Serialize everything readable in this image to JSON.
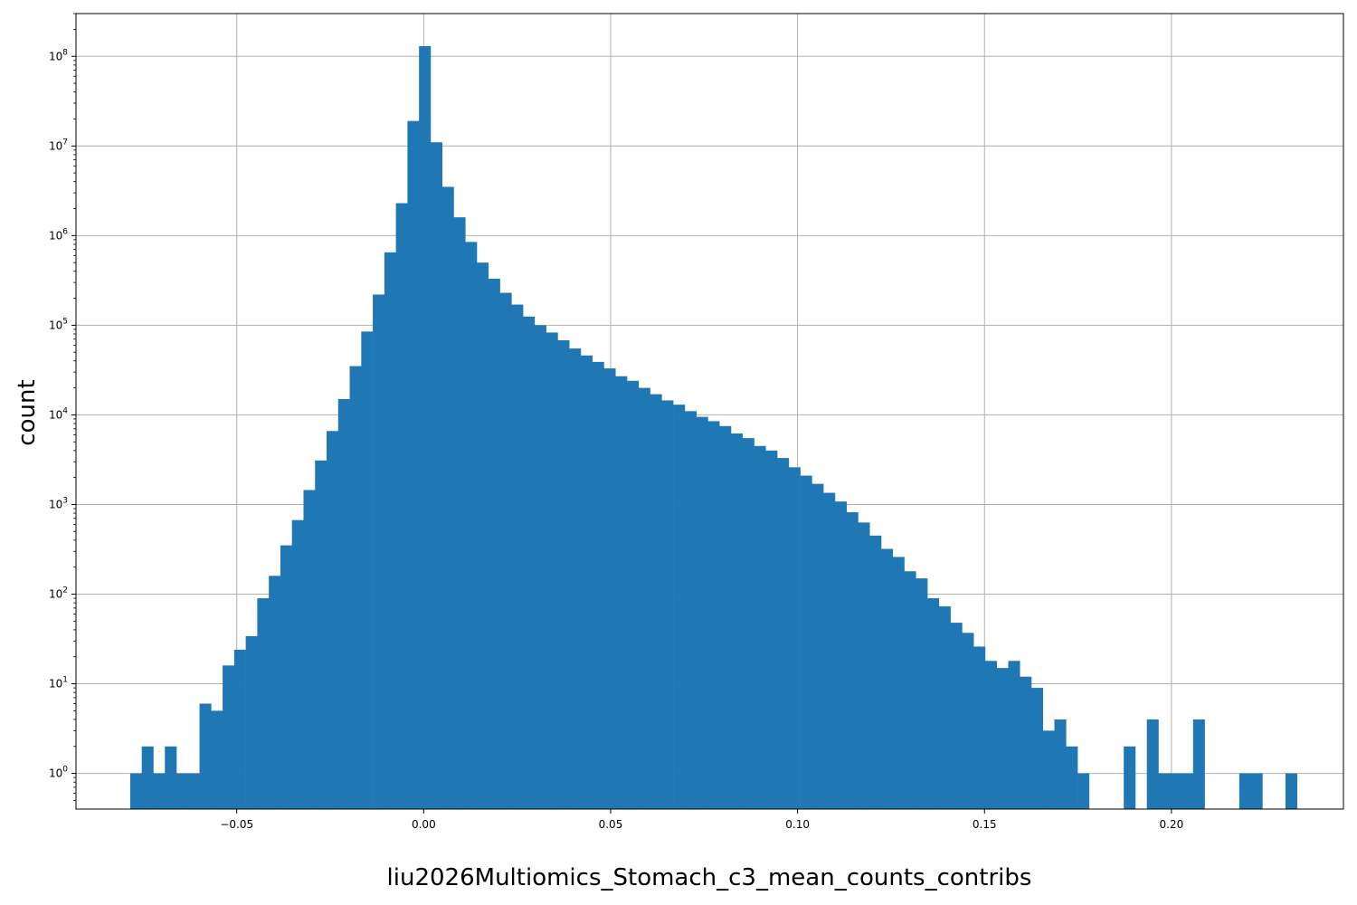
{
  "chart_data": {
    "type": "bar",
    "title": "",
    "xlabel": "liu2026Multiomics_Stomach_c3_mean_counts_contribs",
    "ylabel": "count",
    "y_scale": "log",
    "grid": true,
    "legend": "none",
    "bar_color": "#1f77b4",
    "xlim": [
      -0.093,
      0.246
    ],
    "ylim": [
      0.4,
      300000000
    ],
    "bin_width": 0.00309,
    "x_ticks": [
      {
        "value": -0.05,
        "label": "−0.05"
      },
      {
        "value": 0.0,
        "label": "0.00"
      },
      {
        "value": 0.05,
        "label": "0.05"
      },
      {
        "value": 0.1,
        "label": "0.10"
      },
      {
        "value": 0.15,
        "label": "0.15"
      },
      {
        "value": 0.2,
        "label": "0.20"
      }
    ],
    "y_ticks": [
      {
        "value": 1,
        "base": "10",
        "exp": "0"
      },
      {
        "value": 10,
        "base": "10",
        "exp": "1"
      },
      {
        "value": 100,
        "base": "10",
        "exp": "2"
      },
      {
        "value": 1000,
        "base": "10",
        "exp": "3"
      },
      {
        "value": 10000,
        "base": "10",
        "exp": "4"
      },
      {
        "value": 100000,
        "base": "10",
        "exp": "5"
      },
      {
        "value": 1000000,
        "base": "10",
        "exp": "6"
      },
      {
        "value": 10000000,
        "base": "10",
        "exp": "7"
      },
      {
        "value": 100000000,
        "base": "10",
        "exp": "8"
      }
    ],
    "bin_start": -0.0785,
    "counts": [
      1,
      2,
      1,
      2,
      1,
      1,
      6,
      5,
      16,
      24,
      34,
      90,
      160,
      350,
      670,
      1450,
      3100,
      6600,
      15000,
      35000,
      85000,
      220000,
      650000,
      2300000,
      19000000,
      130000000,
      11000000,
      3500000,
      1600000,
      850000,
      500000,
      330000,
      230000,
      170000,
      125000,
      100000,
      83000,
      68000,
      55000,
      46000,
      39000,
      33000,
      27000,
      24000,
      20000,
      17000,
      14500,
      13000,
      11000,
      9500,
      8500,
      7500,
      6200,
      5500,
      4500,
      4000,
      3300,
      2600,
      2100,
      1700,
      1350,
      1080,
      820,
      630,
      450,
      320,
      260,
      180,
      150,
      90,
      73,
      48,
      37,
      26,
      18,
      15,
      18,
      12,
      9,
      3,
      4,
      2,
      1,
      0,
      0,
      0,
      2,
      0,
      4,
      1,
      1,
      1,
      4,
      0,
      0,
      0,
      1,
      1,
      0,
      0,
      1
    ]
  }
}
